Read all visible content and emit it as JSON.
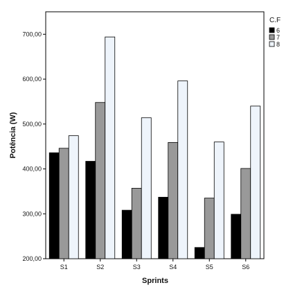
{
  "chart_data": {
    "type": "bar",
    "categories": [
      "S1",
      "S2",
      "S3",
      "S4",
      "S5",
      "S6"
    ],
    "series": [
      {
        "name": "6",
        "color": "#000000",
        "values": [
          436,
          417,
          308,
          337,
          225,
          299
        ]
      },
      {
        "name": "7",
        "color": "#999999",
        "values": [
          446,
          548,
          357,
          459,
          335,
          401
        ]
      },
      {
        "name": "8",
        "color": "#eef4fb",
        "values": [
          474,
          694,
          514,
          596,
          460,
          540
        ]
      }
    ],
    "xlabel": "Sprints",
    "ylabel": "Potência (W)",
    "ylim": [
      200,
      750
    ],
    "yticks": [
      200,
      300,
      400,
      500,
      600,
      700
    ],
    "ytick_labels": [
      "200,00",
      "300,00",
      "400,00",
      "500,00",
      "600,00",
      "700,00"
    ],
    "legend_title": "C.F",
    "legend_position": "top-right",
    "grid": false
  }
}
